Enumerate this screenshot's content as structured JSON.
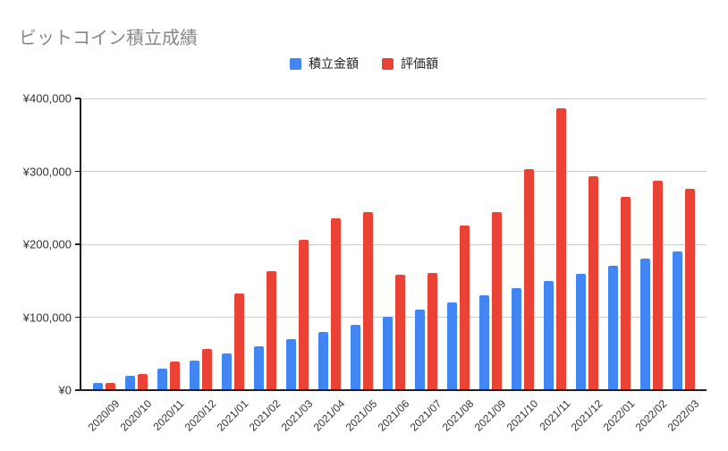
{
  "chart_data": {
    "type": "bar",
    "title": "ビットコイン積立成績",
    "categories": [
      "2020/09",
      "2020/10",
      "2020/11",
      "2020/12",
      "2021/01",
      "2021/02",
      "2021/03",
      "2021/04",
      "2021/05",
      "2021/06",
      "2021/07",
      "2021/08",
      "2021/09",
      "2021/10",
      "2021/11",
      "2021/12",
      "2022/01",
      "2022/02",
      "2022/03"
    ],
    "series": [
      {
        "name": "積立金額",
        "color": "#4285F4",
        "values": [
          10000,
          20000,
          30000,
          40000,
          50000,
          60000,
          70000,
          80000,
          90000,
          100000,
          110000,
          120000,
          130000,
          140000,
          150000,
          160000,
          170000,
          180000,
          190000
        ]
      },
      {
        "name": "評価額",
        "color": "#EA4335",
        "values": [
          9500,
          21500,
          39000,
          56000,
          133000,
          163000,
          206000,
          236000,
          244000,
          158000,
          161000,
          226000,
          244000,
          303000,
          386000,
          293000,
          265000,
          287000,
          276000
        ]
      }
    ],
    "ylim": [
      0,
      400000
    ],
    "ytick_step": 100000,
    "ytick_labels": [
      "¥0",
      "¥100,000",
      "¥200,000",
      "¥300,000",
      "¥400,000"
    ],
    "currency_prefix": "¥",
    "grid": true,
    "legend_position": "top",
    "colors": {
      "grid": "#cccccc",
      "axis": "#212121",
      "title_text": "#878787",
      "axis_label_text": "#333333",
      "legend_text": "#212121",
      "background": "#ffffff"
    }
  }
}
